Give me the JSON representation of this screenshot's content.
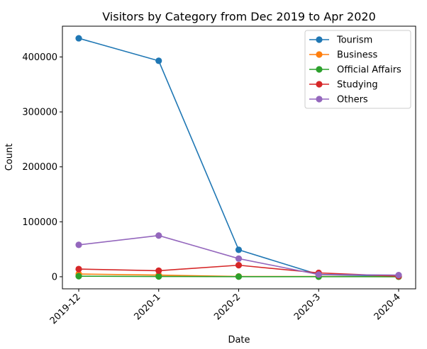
{
  "chart_data": {
    "type": "line",
    "title": "Visitors by Category from Dec 2019 to Apr 2020",
    "xlabel": "Date",
    "ylabel": "Count",
    "categories": [
      "2019-12",
      "2020-1",
      "2020-2",
      "2020-3",
      "2020-4"
    ],
    "ylim": [
      -22000,
      456000
    ],
    "yticks": [
      0,
      100000,
      200000,
      300000,
      400000
    ],
    "ytick_labels": [
      "0",
      "100000",
      "200000",
      "300000",
      "400000"
    ],
    "grid": false,
    "legend_position": "top-right",
    "series": [
      {
        "name": "Tourism",
        "color": "#1f77b4",
        "values": [
          434000,
          393000,
          49000,
          4000,
          1000
        ]
      },
      {
        "name": "Business",
        "color": "#ff7f0e",
        "values": [
          5000,
          3000,
          500,
          500,
          100
        ]
      },
      {
        "name": "Official Affairs",
        "color": "#2ca02c",
        "values": [
          1000,
          500,
          200,
          100,
          50
        ]
      },
      {
        "name": "Studying",
        "color": "#d62728",
        "values": [
          14000,
          11000,
          21000,
          7000,
          1000
        ]
      },
      {
        "name": "Others",
        "color": "#9467bd",
        "values": [
          58000,
          75000,
          33000,
          4000,
          3000
        ]
      }
    ]
  }
}
